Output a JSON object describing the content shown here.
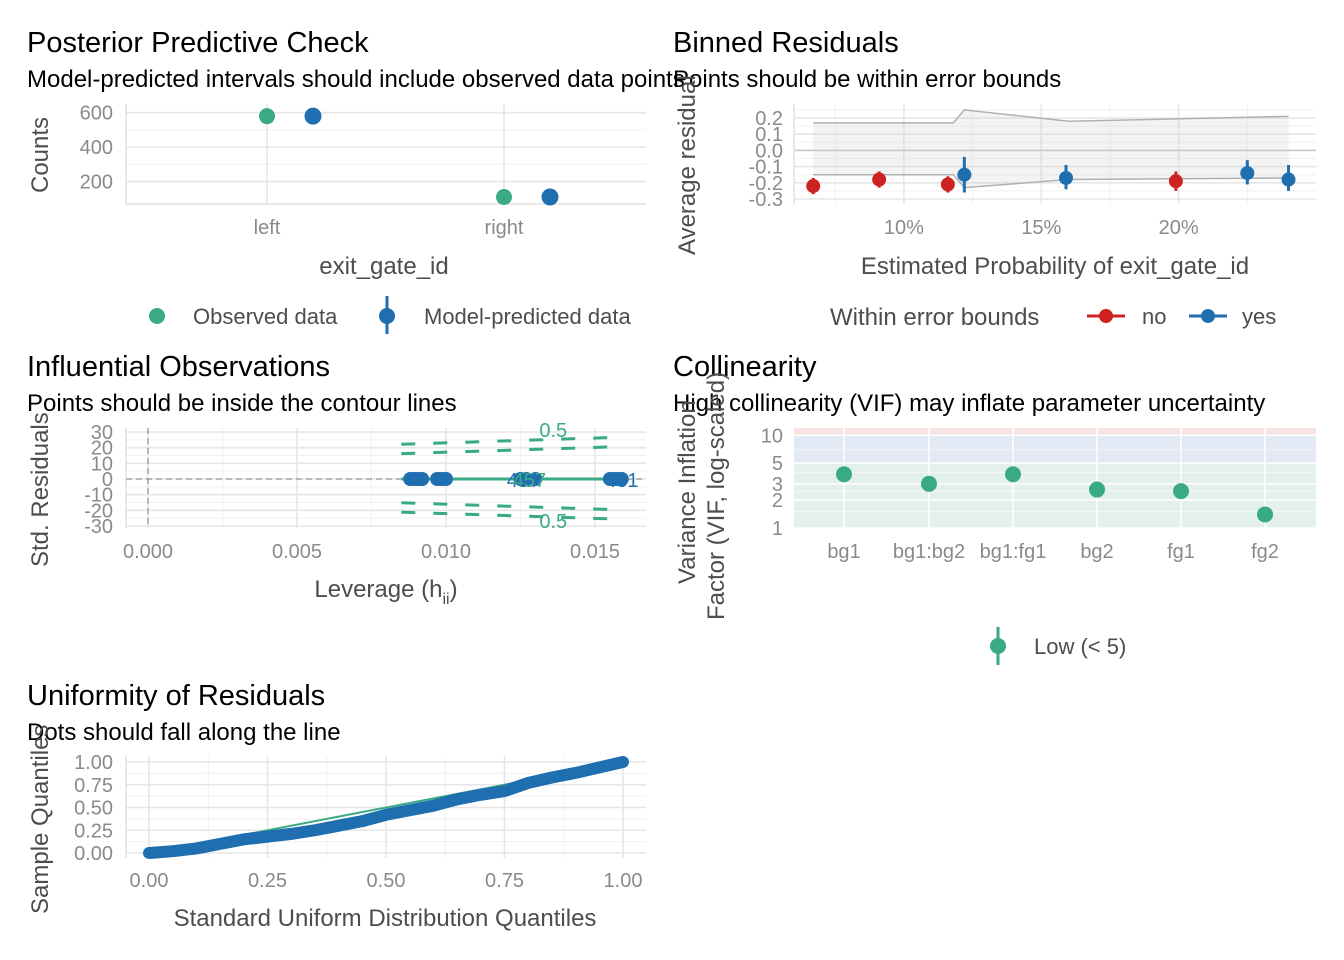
{
  "chart_data": [
    {
      "panel": "ppc",
      "type": "scatter",
      "title": "Posterior Predictive Check",
      "subtitle": "Model-predicted intervals should include observed data points",
      "xlabel": "exit_gate_id",
      "ylabel": "Counts",
      "categories": [
        "left",
        "right"
      ],
      "yticks": [
        200,
        400,
        600
      ],
      "ylim": [
        110,
        610
      ],
      "series": [
        {
          "name": "Observed data",
          "values": [
            580,
            110
          ]
        },
        {
          "name": "Model-predicted data",
          "values": [
            580,
            110
          ]
        }
      ],
      "legend_position": "bottom"
    },
    {
      "panel": "binned",
      "type": "scatter",
      "title": "Binned Residuals",
      "subtitle": "Points should be within error bounds",
      "xlabel": "Estimated Probability of exit_gate_id",
      "ylabel": "Average residual",
      "xlim": [
        0.06,
        0.25
      ],
      "ylim": [
        -0.3,
        0.25
      ],
      "xticks": [
        "10%",
        "15%",
        "20%"
      ],
      "xtick_values": [
        0.1,
        0.15,
        0.2
      ],
      "yticks": [
        "-0.3",
        "-0.2",
        "-0.1",
        "0.0",
        "0.1",
        "0.2"
      ],
      "ytick_values": [
        -0.3,
        -0.2,
        -0.1,
        0.0,
        0.1,
        0.2
      ],
      "legend_title": "Within error bounds",
      "legend": [
        "no",
        "yes"
      ],
      "points": [
        {
          "x": 0.067,
          "y": -0.22,
          "lo": -0.27,
          "hi": -0.17,
          "group": "no"
        },
        {
          "x": 0.091,
          "y": -0.18,
          "lo": -0.23,
          "hi": -0.13,
          "group": "no"
        },
        {
          "x": 0.116,
          "y": -0.21,
          "lo": -0.26,
          "hi": -0.16,
          "group": "no"
        },
        {
          "x": 0.122,
          "y": -0.15,
          "lo": -0.26,
          "hi": -0.04,
          "group": "yes"
        },
        {
          "x": 0.159,
          "y": -0.17,
          "lo": -0.24,
          "hi": -0.09,
          "group": "yes"
        },
        {
          "x": 0.199,
          "y": -0.19,
          "lo": -0.25,
          "hi": -0.13,
          "group": "no"
        },
        {
          "x": 0.225,
          "y": -0.14,
          "lo": -0.21,
          "hi": -0.06,
          "group": "yes"
        },
        {
          "x": 0.24,
          "y": -0.18,
          "lo": -0.25,
          "hi": -0.09,
          "group": "yes"
        }
      ],
      "bound_upper": [
        [
          0.067,
          0.17
        ],
        [
          0.118,
          0.17
        ],
        [
          0.122,
          0.25
        ],
        [
          0.16,
          0.18
        ],
        [
          0.24,
          0.21
        ]
      ],
      "bound_lower": [
        [
          0.067,
          -0.15
        ],
        [
          0.118,
          -0.15
        ],
        [
          0.122,
          -0.23
        ],
        [
          0.16,
          -0.18
        ],
        [
          0.24,
          -0.17
        ]
      ]
    },
    {
      "panel": "influential",
      "type": "scatter",
      "title": "Influential Observations",
      "subtitle": "Points should be inside the contour lines",
      "xlabel": "Leverage (h",
      "xlabel_sub": "ii",
      "xlabel_suffix": ")",
      "ylabel": "Std. Residuals",
      "xlim": [
        -0.001,
        0.0167
      ],
      "ylim": [
        -31,
        31
      ],
      "xticks": [
        "0.000",
        "0.005",
        "0.010",
        "0.015"
      ],
      "xtick_values": [
        0.0,
        0.005,
        0.01,
        0.015
      ],
      "yticks": [
        "-30",
        "-20",
        "-10",
        "0",
        "10",
        "20",
        "30"
      ],
      "ytick_values": [
        -30,
        -20,
        -10,
        0,
        10,
        20,
        30
      ],
      "contour_label_top": "0.5",
      "contour_label_bottom": "0.5",
      "point_labels": [
        "437",
        "457",
        "431",
        "431"
      ],
      "point_x": [
        0.0088,
        0.0089,
        0.009,
        0.0091,
        0.0092,
        0.0097,
        0.0098,
        0.0099,
        0.01,
        0.0125,
        0.0127,
        0.013,
        0.0155,
        0.0156,
        0.0157,
        0.0158,
        0.0159
      ]
    },
    {
      "panel": "collinearity",
      "type": "scatter",
      "title": "Collinearity",
      "subtitle": "High collinearity (VIF) may inflate parameter uncertainty",
      "xlabel": "",
      "ylabel": "Variance Inflation Factor (VIF, log-scaled)",
      "ylabel_line1": "Variance Inflation",
      "ylabel_line2": "Factor (VIF, log-scaled)",
      "categories": [
        "bg1",
        "bg1:bg2",
        "bg1:fg1",
        "bg2",
        "fg1",
        "fg2"
      ],
      "values": [
        3.8,
        3.0,
        3.8,
        2.6,
        2.5,
        1.4
      ],
      "yticks": [
        "1",
        "2",
        "3",
        "5",
        "10"
      ],
      "ytick_values": [
        1,
        2,
        3,
        5,
        10
      ],
      "ylim": [
        1,
        12
      ],
      "log_scale": true,
      "legend": [
        "Low (< 5)"
      ],
      "colors": {
        "low_zone": "#e3f1ea",
        "moderate_zone": "#e2e9f4",
        "high_zone": "#f7e3e4"
      }
    },
    {
      "panel": "uniformity",
      "type": "scatter",
      "title": "Uniformity of Residuals",
      "subtitle": "Dots should fall along the line",
      "xlabel": "Standard Uniform Distribution Quantiles",
      "ylabel": "Sample Quantiles",
      "xticks": [
        "0.00",
        "0.25",
        "0.50",
        "0.75",
        "1.00"
      ],
      "yticks": [
        "0.00",
        "0.25",
        "0.50",
        "0.75",
        "1.00"
      ],
      "tick_values": [
        0,
        0.25,
        0.5,
        0.75,
        1.0
      ],
      "curve": [
        [
          0.0,
          0.0
        ],
        [
          0.05,
          0.02
        ],
        [
          0.1,
          0.05
        ],
        [
          0.15,
          0.1
        ],
        [
          0.2,
          0.15
        ],
        [
          0.25,
          0.18
        ],
        [
          0.3,
          0.21
        ],
        [
          0.35,
          0.25
        ],
        [
          0.4,
          0.3
        ],
        [
          0.45,
          0.35
        ],
        [
          0.5,
          0.42
        ],
        [
          0.55,
          0.47
        ],
        [
          0.6,
          0.52
        ],
        [
          0.65,
          0.59
        ],
        [
          0.7,
          0.64
        ],
        [
          0.75,
          0.68
        ],
        [
          0.8,
          0.77
        ],
        [
          0.85,
          0.83
        ],
        [
          0.9,
          0.88
        ],
        [
          0.95,
          0.94
        ],
        [
          1.0,
          1.0
        ]
      ]
    }
  ],
  "colors": {
    "green": "#3aaa85",
    "blue": "#1f6eb0",
    "red": "#cc2222",
    "bound": "#b0b0b0"
  }
}
